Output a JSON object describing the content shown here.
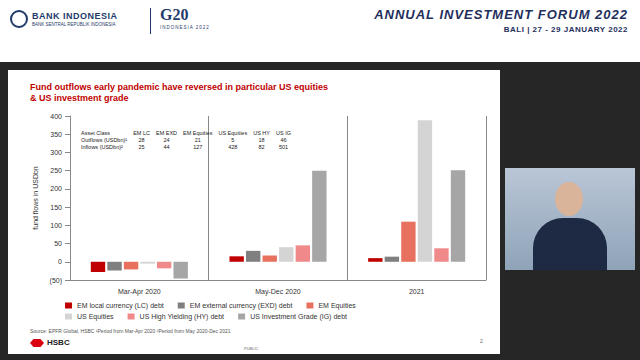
{
  "header": {
    "org": "BANK INDONESIA",
    "org_sub": "BANK SENTRAL REPUBLIK INDONESIA",
    "event_logo": "G20",
    "event_logo_sub": "INDONESIA 2022",
    "forum": "ANNUAL INVESTMENT FORUM 2022",
    "venue": "BALI | 27 - 29 JANUARY 2022"
  },
  "slide": {
    "title": "Fund outflows early pandemic have reversed in particular US equities & US investment grade",
    "table": {
      "header": [
        "Asset Class",
        "EM LC",
        "EM EXD",
        "EM Equities",
        "US Equities",
        "US HY",
        "US IG"
      ],
      "rows": [
        [
          "Outflows (USDbn)¹",
          28,
          24,
          21,
          5,
          18,
          46
        ],
        [
          "Inflows (USDbn)²",
          25,
          44,
          127,
          428,
          82,
          501
        ]
      ]
    },
    "source": "Source: EPFR Global, HSBC   ¹Period from Mar-Apr 2020   ²Period from May 2020-Dec 2021",
    "logo": "HSBC",
    "classification": "PUBLIC",
    "page": "2"
  },
  "chart_data": {
    "type": "bar",
    "categories": [
      "Mar-Apr 2020",
      "May-Dec 2020",
      "2021"
    ],
    "ylabel": "fund flows in USDbn",
    "ylim": [
      -50,
      400
    ],
    "yticks": [
      {
        "value": -50,
        "label": "(50)"
      },
      0,
      50,
      100,
      150,
      200,
      250,
      300,
      350,
      400
    ],
    "grid": false,
    "legend": "bottom",
    "series": [
      {
        "name": "EM local currency (LC) debt",
        "color": "#c00000",
        "values": [
          -28,
          15,
          10
        ]
      },
      {
        "name": "EM external currency (EXD) debt",
        "color": "#7f7f7f",
        "values": [
          -24,
          30,
          14
        ]
      },
      {
        "name": "EM Equities",
        "color": "#e8705e",
        "values": [
          -21,
          17,
          110
        ]
      },
      {
        "name": "US Equities",
        "color": "#d4d4d4",
        "values": [
          -5,
          40,
          388
        ]
      },
      {
        "name": "US High Yielding (HY) debt",
        "color": "#f08a8a",
        "values": [
          -18,
          45,
          37
        ]
      },
      {
        "name": "US Investment Grade (IG) debt",
        "color": "#a6a6a6",
        "values": [
          -46,
          250,
          251
        ]
      }
    ]
  }
}
